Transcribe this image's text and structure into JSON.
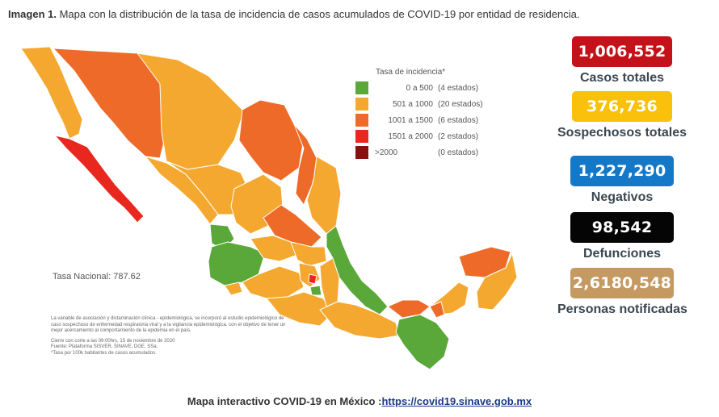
{
  "header": {
    "label": "Imagen 1.",
    "text": " Mapa con la distribución de la tasa de incidencia de casos acumulados de COVID-19 por entidad de residencia."
  },
  "legend": {
    "title": "Tasa de incidencia*",
    "items": [
      {
        "range": "0  a   500",
        "count": "(4 estados)",
        "color": "#5aa83a"
      },
      {
        "range": "501 a  1000",
        "count": "(20 estados)",
        "color": "#f5a830"
      },
      {
        "range": "1001 a  1500",
        "count": "(6 estados)",
        "color": "#ee6a28"
      },
      {
        "range": "1501 a  2000",
        "count": "(2 estados)",
        "color": "#e8281e"
      },
      {
        "range": ">2000",
        "count": "(0 estados)",
        "color": "#8a0f0f"
      }
    ]
  },
  "tasa_nacional": "Tasa Nacional: 787.62",
  "notes": {
    "paragraph": "La variable de asociación y dictaminación clínica - epidemiológica, se incorporó al estudio epidemiológico de caso sospechoso de enfermedad respiratoria viral y a la vigilancia epidemiológica, con el objetivo de tener un mejor acercamiento al comportamiento de la epidemia en el país.",
    "cierre": "Cierre con corte a las 09:00hrs, 15 de noviembre de 2020",
    "fuente": "Fuente: Plataforma SISVER, SINAVE, DGE, SSa.",
    "tasa_note": "*Tasa por 100k habitantes de casos acumulados."
  },
  "stats": [
    {
      "value": "1,006,552",
      "label": "Casos totales",
      "color": "#c4121a"
    },
    {
      "value": "376,736",
      "label": "Sospechosos totales",
      "color": "#f9c10b"
    },
    {
      "value": "1,227,290",
      "label": "Negativos",
      "color": "#1478c8"
    },
    {
      "value": "98,542",
      "label": "Defunciones",
      "color": "#050505"
    },
    {
      "value": "2,6180,548",
      "label": "Personas notificadas",
      "color": "#c49a62"
    }
  ],
  "footer": {
    "text": "Mapa interactivo COVID-19 en México :",
    "link": "https://covid19.sinave.gob.mx"
  }
}
